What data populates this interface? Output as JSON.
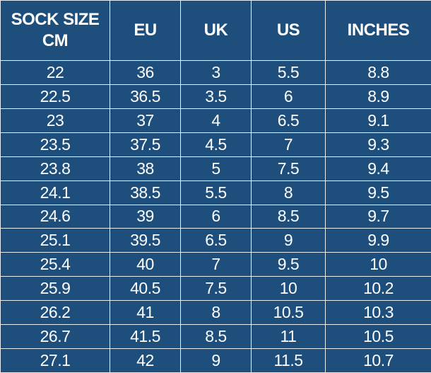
{
  "table": {
    "headers": [
      "SOCK SIZE CM",
      "EU",
      "UK",
      "US",
      "INCHES"
    ],
    "rows": [
      [
        "22",
        "36",
        "3",
        "5.5",
        "8.8"
      ],
      [
        "22.5",
        "36.5",
        "3.5",
        "6",
        "8.9"
      ],
      [
        "23",
        "37",
        "4",
        "6.5",
        "9.1"
      ],
      [
        "23.5",
        "37.5",
        "4.5",
        "7",
        "9.3"
      ],
      [
        "23.8",
        "38",
        "5",
        "7.5",
        "9.4"
      ],
      [
        "24.1",
        "38.5",
        "5.5",
        "8",
        "9.5"
      ],
      [
        "24.6",
        "39",
        "6",
        "8.5",
        "9.7"
      ],
      [
        "25.1",
        "39.5",
        "6.5",
        "9",
        "9.9"
      ],
      [
        "25.4",
        "40",
        "7",
        "9.5",
        "10"
      ],
      [
        "25.9",
        "40.5",
        "7.5",
        "10",
        "10.2"
      ],
      [
        "26.2",
        "41",
        "8",
        "10.5",
        "10.3"
      ],
      [
        "26.7",
        "41.5",
        "8.5",
        "11",
        "10.5"
      ],
      [
        "27.1",
        "42",
        "9",
        "11.5",
        "10.7"
      ]
    ]
  }
}
